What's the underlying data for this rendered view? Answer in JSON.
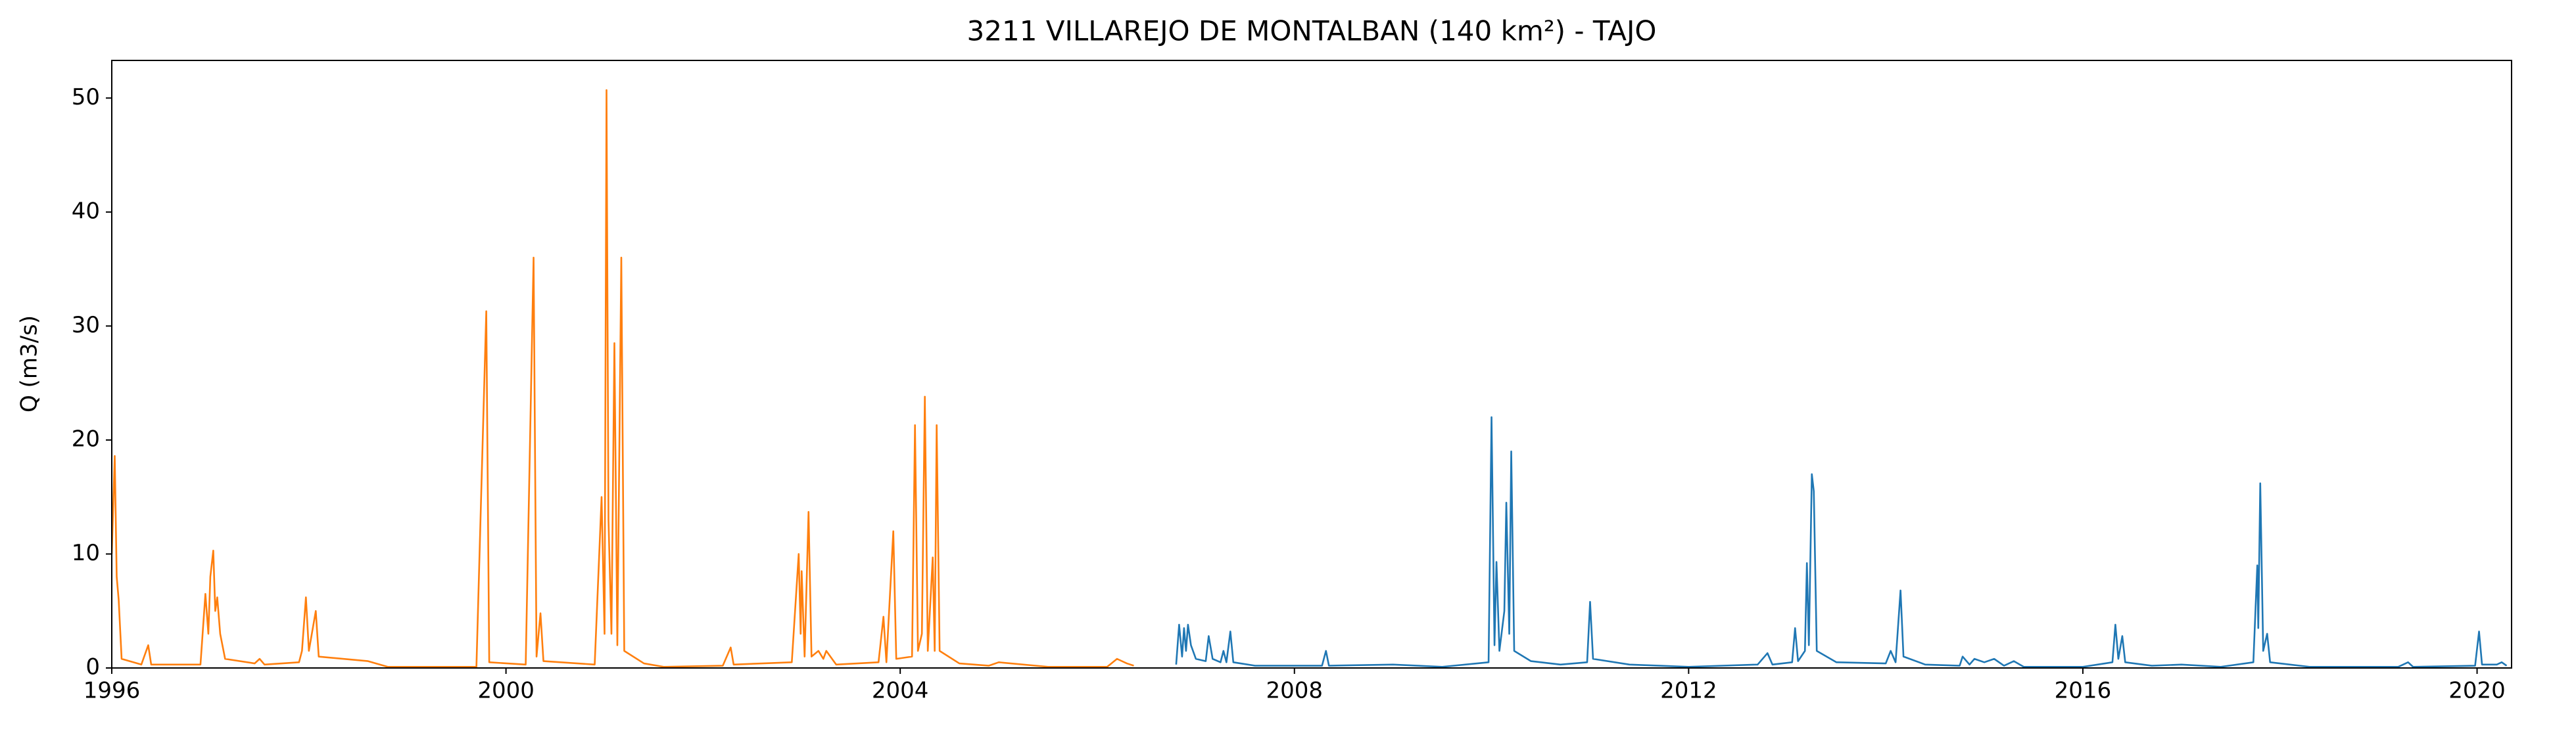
{
  "chart_data": {
    "type": "line",
    "title": "3211 VILLAREJO DE MONTALBAN (140 km²) - TAJO",
    "ylabel": "Q (m3/s)",
    "xlim": [
      1996,
      2020.35
    ],
    "ylim": [
      0,
      53.3
    ],
    "xticks": [
      1996,
      2000,
      2004,
      2008,
      2012,
      2016,
      2020
    ],
    "yticks": [
      0,
      10,
      20,
      30,
      40,
      50
    ],
    "grid": false,
    "series": [
      {
        "color": "#ff7f0e",
        "x": [
          1996.0,
          1996.03,
          1996.05,
          1996.07,
          1996.1,
          1996.3,
          1996.37,
          1996.4,
          1996.9,
          1996.95,
          1996.98,
          1997.0,
          1997.03,
          1997.05,
          1997.07,
          1997.1,
          1997.15,
          1997.45,
          1997.5,
          1997.55,
          1997.9,
          1997.93,
          1997.97,
          1998.0,
          1998.07,
          1998.1,
          1998.6,
          1998.8,
          1999.7,
          1999.8,
          1999.83,
          2000.2,
          2000.28,
          2000.31,
          2000.35,
          2000.38,
          2000.9,
          2000.97,
          2001.0,
          2001.02,
          2001.04,
          2001.07,
          2001.1,
          2001.13,
          2001.17,
          2001.2,
          2001.4,
          2001.6,
          2002.2,
          2002.28,
          2002.31,
          2002.9,
          2002.97,
          2002.99,
          2003.0,
          2003.03,
          2003.07,
          2003.1,
          2003.17,
          2003.22,
          2003.25,
          2003.35,
          2003.78,
          2003.83,
          2003.86,
          2003.93,
          2003.96,
          2004.12,
          2004.15,
          2004.18,
          2004.22,
          2004.25,
          2004.28,
          2004.33,
          2004.35,
          2004.37,
          2004.4,
          2004.6,
          2004.9,
          2005.0,
          2005.5,
          2006.1,
          2006.2,
          2006.3,
          2006.37
        ],
        "values": [
          10,
          18.6,
          8,
          6,
          0.8,
          0.3,
          2,
          0.3,
          0.3,
          6.5,
          3,
          8,
          10.3,
          5,
          6.2,
          3,
          0.8,
          0.4,
          0.8,
          0.3,
          0.5,
          1.5,
          6.2,
          1.5,
          5,
          1,
          0.6,
          0.1,
          0.1,
          31.3,
          0.5,
          0.3,
          36,
          1,
          4.8,
          0.6,
          0.3,
          15,
          3,
          50.7,
          13,
          3,
          28.5,
          2,
          36,
          1.5,
          0.4,
          0.1,
          0.2,
          1.8,
          0.3,
          0.5,
          10,
          3,
          8.5,
          1,
          13.7,
          1,
          1.5,
          0.8,
          1.5,
          0.3,
          0.5,
          4.5,
          0.5,
          12,
          0.8,
          1,
          21.3,
          1.5,
          3,
          23.8,
          1.5,
          9.7,
          1.5,
          21.3,
          1.5,
          0.4,
          0.2,
          0.5,
          0.1,
          0.1,
          0.8,
          0.4,
          0.2
        ]
      },
      {
        "color": "#1f77b4",
        "x": [
          2006.8,
          2006.83,
          2006.86,
          2006.88,
          2006.9,
          2006.92,
          2006.95,
          2007.0,
          2007.1,
          2007.13,
          2007.17,
          2007.25,
          2007.28,
          2007.31,
          2007.35,
          2007.38,
          2007.6,
          2008.28,
          2008.32,
          2008.35,
          2009.0,
          2009.5,
          2009.97,
          2010.0,
          2010.03,
          2010.05,
          2010.08,
          2010.13,
          2010.15,
          2010.18,
          2010.2,
          2010.23,
          2010.4,
          2010.7,
          2010.97,
          2011.0,
          2011.03,
          2011.4,
          2012.0,
          2012.7,
          2012.8,
          2012.85,
          2013.05,
          2013.08,
          2013.11,
          2013.18,
          2013.2,
          2013.22,
          2013.25,
          2013.27,
          2013.3,
          2013.5,
          2014.0,
          2014.05,
          2014.1,
          2014.15,
          2014.18,
          2014.4,
          2014.75,
          2014.78,
          2014.85,
          2014.9,
          2015.0,
          2015.1,
          2015.2,
          2015.3,
          2015.4,
          2016.0,
          2016.3,
          2016.33,
          2016.36,
          2016.4,
          2016.43,
          2016.7,
          2017.0,
          2017.4,
          2017.73,
          2017.77,
          2017.78,
          2017.8,
          2017.83,
          2017.87,
          2017.9,
          2018.3,
          2019.2,
          2019.3,
          2019.35,
          2019.98,
          2020.02,
          2020.05,
          2020.2,
          2020.25,
          2020.3
        ],
        "values": [
          0.3,
          3.8,
          1,
          3.5,
          1.5,
          3.8,
          2,
          0.8,
          0.6,
          2.8,
          0.8,
          0.5,
          1.5,
          0.5,
          3.2,
          0.5,
          0.2,
          0.2,
          1.5,
          0.2,
          0.3,
          0.1,
          0.5,
          22,
          2,
          9.3,
          1.5,
          5,
          14.5,
          3,
          19,
          1.5,
          0.6,
          0.3,
          0.5,
          5.8,
          0.8,
          0.3,
          0.1,
          0.3,
          1.3,
          0.3,
          0.5,
          3.5,
          0.6,
          1.5,
          9.2,
          2,
          17,
          15.5,
          1.5,
          0.5,
          0.4,
          1.5,
          0.5,
          6.8,
          1,
          0.3,
          0.2,
          1,
          0.3,
          0.8,
          0.5,
          0.8,
          0.2,
          0.6,
          0.1,
          0.1,
          0.5,
          3.8,
          0.8,
          2.8,
          0.5,
          0.2,
          0.3,
          0.1,
          0.5,
          9,
          3.5,
          16.2,
          1.5,
          3,
          0.5,
          0.1,
          0.1,
          0.5,
          0.1,
          0.2,
          3.2,
          0.3,
          0.3,
          0.5,
          0.2
        ]
      }
    ]
  }
}
